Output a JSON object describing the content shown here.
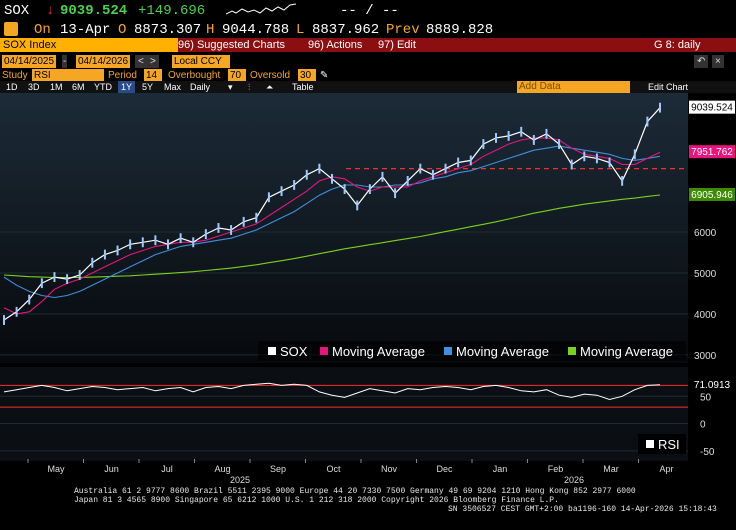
{
  "quote": {
    "ticker": "SOX",
    "arrow": "↓",
    "last": "9039.524",
    "change": "+149.696",
    "dashes": "-- / --",
    "on_label": "On",
    "date": "13-Apr",
    "o_label": "O",
    "open": "8873.307",
    "h_label": "H",
    "high": "9044.788",
    "l_label": "L",
    "low": "8837.962",
    "prev_label": "Prev",
    "prev": "8889.828"
  },
  "toolbar": {
    "security": "SOX Index",
    "suggested": "96) Suggested Charts",
    "actions": "96) Actions",
    "edit": "97) Edit",
    "right": "G 8: daily"
  },
  "controls": {
    "start_date": "04/14/2025",
    "end_date": "04/14/2026",
    "currency": "Local CCY",
    "study_label": "Study",
    "study": "RSI",
    "period_label": "Period",
    "period": "14",
    "overbought_label": "Overbought",
    "overbought": "70",
    "oversold_label": "Oversold",
    "oversold": "30",
    "ranges": [
      "1D",
      "3D",
      "1M",
      "6M",
      "YTD",
      "1Y",
      "5Y",
      "Max"
    ],
    "selected_range": "1Y",
    "frequency": "Daily",
    "table": "Table",
    "add_data": "Add Data",
    "edit_chart": "Edit Chart"
  },
  "chart_data": [
    {
      "type": "line",
      "title": "",
      "x_axis": {
        "months": [
          "May",
          "Jun",
          "Jul",
          "Aug",
          "Sep",
          "Oct",
          "Nov",
          "Dec",
          "Jan",
          "Feb",
          "Mar",
          "Apr"
        ],
        "years": [
          "2025",
          "2026"
        ]
      },
      "y_axis": {
        "ticks": [
          3000,
          4000,
          5000,
          6000
        ],
        "ylim": [
          2800,
          9300
        ]
      },
      "price_labels": [
        {
          "value": "9039.524",
          "bg": "#ffffff",
          "fg": "#000000"
        },
        {
          "value": "7951.762",
          "bg": "#e8157e",
          "fg": "#ffffff"
        },
        {
          "value": "6905.946",
          "bg": "#3d8b00",
          "fg": "#ffffff"
        }
      ],
      "reference_line": 7550,
      "series": [
        {
          "name": "SOX",
          "color": "#ffffff",
          "x": [
            "2025-04-14",
            "2025-04-21",
            "2025-04-28",
            "2025-05-05",
            "2025-05-12",
            "2025-05-19",
            "2025-05-26",
            "2025-06-02",
            "2025-06-09",
            "2025-06-16",
            "2025-06-23",
            "2025-06-30",
            "2025-07-07",
            "2025-07-14",
            "2025-07-21",
            "2025-07-28",
            "2025-08-04",
            "2025-08-11",
            "2025-08-18",
            "2025-08-25",
            "2025-09-01",
            "2025-09-08",
            "2025-09-15",
            "2025-09-22",
            "2025-09-29",
            "2025-10-06",
            "2025-10-13",
            "2025-10-20",
            "2025-10-27",
            "2025-11-03",
            "2025-11-10",
            "2025-11-17",
            "2025-11-24",
            "2025-12-01",
            "2025-12-08",
            "2025-12-15",
            "2025-12-22",
            "2025-12-29",
            "2026-01-05",
            "2026-01-12",
            "2026-01-19",
            "2026-01-26",
            "2026-02-02",
            "2026-02-09",
            "2026-02-16",
            "2026-02-23",
            "2026-03-02",
            "2026-03-09",
            "2026-03-16",
            "2026-03-23",
            "2026-03-30",
            "2026-04-06",
            "2026-04-13"
          ],
          "values": [
            3850,
            4050,
            4350,
            4750,
            4900,
            4850,
            4950,
            5250,
            5450,
            5550,
            5700,
            5750,
            5800,
            5700,
            5850,
            5750,
            5950,
            6100,
            6050,
            6250,
            6350,
            6850,
            7000,
            7150,
            7400,
            7550,
            7300,
            7050,
            6650,
            7050,
            7350,
            6950,
            7250,
            7550,
            7400,
            7550,
            7700,
            7750,
            8150,
            8300,
            8350,
            8450,
            8250,
            8400,
            8150,
            7650,
            7850,
            7800,
            7700,
            7250,
            7900,
            8700,
            9039.524
          ]
        },
        {
          "name": "Moving Average",
          "color": "#e8157e",
          "values": [
            4150,
            4000,
            4050,
            4300,
            4600,
            4750,
            4850,
            5000,
            5150,
            5300,
            5450,
            5550,
            5650,
            5700,
            5750,
            5750,
            5800,
            5900,
            6000,
            6100,
            6200,
            6400,
            6600,
            6800,
            7000,
            7250,
            7350,
            7300,
            7100,
            7000,
            7100,
            7100,
            7100,
            7250,
            7350,
            7450,
            7550,
            7650,
            7850,
            8000,
            8150,
            8250,
            8300,
            8300,
            8250,
            8050,
            7900,
            7850,
            7800,
            7650,
            7650,
            7800,
            7951.762
          ]
        },
        {
          "name": "Moving Average",
          "color": "#3f8fdf",
          "values": [
            4900,
            4700,
            4550,
            4450,
            4400,
            4450,
            4550,
            4700,
            4850,
            5000,
            5150,
            5300,
            5450,
            5550,
            5650,
            5700,
            5750,
            5800,
            5850,
            5950,
            6050,
            6200,
            6350,
            6500,
            6700,
            6900,
            7050,
            7150,
            7150,
            7100,
            7100,
            7150,
            7150,
            7200,
            7300,
            7350,
            7450,
            7500,
            7600,
            7700,
            7800,
            7900,
            8000,
            8050,
            8100,
            8050,
            8000,
            7950,
            7900,
            7800,
            7750,
            7800,
            7850
          ]
        },
        {
          "name": "Moving Average",
          "color": "#7bd21c",
          "values": [
            4950,
            4930,
            4910,
            4900,
            4890,
            4890,
            4890,
            4900,
            4910,
            4920,
            4930,
            4950,
            4970,
            4990,
            5010,
            5030,
            5060,
            5090,
            5120,
            5160,
            5200,
            5250,
            5300,
            5350,
            5410,
            5470,
            5530,
            5590,
            5640,
            5690,
            5740,
            5790,
            5840,
            5890,
            5950,
            6010,
            6070,
            6130,
            6190,
            6250,
            6320,
            6390,
            6460,
            6520,
            6580,
            6630,
            6680,
            6720,
            6760,
            6800,
            6830,
            6870,
            6905.946
          ]
        }
      ],
      "legend": [
        "SOX",
        "Moving Average",
        "Moving Average",
        "Moving Average"
      ]
    },
    {
      "type": "line",
      "title": "",
      "y_axis": {
        "ticks": [
          -50,
          0,
          50
        ],
        "ylim": [
          -65,
          100
        ]
      },
      "value_label": "71.0913",
      "levels": [
        70,
        30
      ],
      "series": [
        {
          "name": "RSI",
          "color": "#ffffff",
          "values": [
            58,
            62,
            66,
            70,
            66,
            60,
            64,
            68,
            66,
            62,
            64,
            66,
            60,
            64,
            66,
            58,
            66,
            68,
            64,
            70,
            72,
            74,
            70,
            72,
            70,
            58,
            52,
            48,
            56,
            64,
            60,
            56,
            64,
            62,
            66,
            68,
            66,
            62,
            68,
            70,
            66,
            60,
            58,
            62,
            52,
            48,
            54,
            52,
            44,
            50,
            62,
            70,
            71.0913
          ]
        }
      ],
      "legend": [
        "RSI"
      ]
    }
  ],
  "footer": {
    "line1": "Australia 61 2 9777 8600 Brazil 5511 2395 9000 Europe 44 20 7330 7500 Germany 49 69 9204 1210 Hong Kong 852 2977 6000",
    "line2": "Japan 81 3 4565 8900      Singapore 65 6212 1000      U.S. 1 212 318 2000           Copyright 2026 Bloomberg Finance L.P.",
    "line3": "SN 3506527 CEST GMT+2:00 ba1196-160 14-Apr-2026 15:18:43"
  }
}
